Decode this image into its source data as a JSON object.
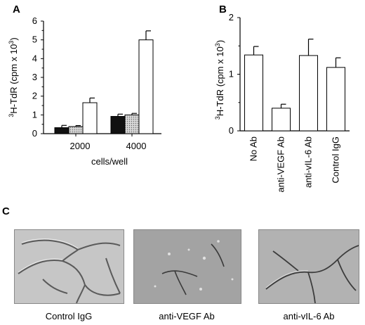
{
  "panel_labels": [
    "A",
    "B",
    "C"
  ],
  "chart_data": [
    {
      "type": "bar",
      "panel": "A",
      "categories": [
        "2000",
        "4000"
      ],
      "xlabel": "cells/well",
      "ylabel": "3H-TdR (cpm x 10³)",
      "ylabel_sup": "3",
      "ylabel_main": "H-TdR (cpm x 10",
      "ylabel_exp": "3",
      "ylabel_close": ")",
      "ylim": [
        0,
        6
      ],
      "yticks": [
        "0",
        "1",
        "2",
        "3",
        "4",
        "5",
        "6"
      ],
      "series": [
        {
          "values": [
            0.32,
            0.92
          ],
          "errors": [
            0.12,
            0.12
          ],
          "fill": "#111111"
        },
        {
          "values": [
            0.38,
            1.0
          ],
          "errors": [
            0.05,
            0.08
          ],
          "fill": "#cccccc"
        },
        {
          "values": [
            1.65,
            5.0
          ],
          "errors": [
            0.25,
            0.48
          ],
          "fill": "#ffffff"
        }
      ]
    },
    {
      "type": "bar",
      "panel": "B",
      "categories": [
        "No Ab",
        "anti-VEGF Ab",
        "anti-vIL-6 Ab",
        "Control IgG"
      ],
      "ylabel": "3H-TdR (cpm x 10³)",
      "ylabel_sup": "3",
      "ylabel_main": "H-TdR (cpm x 10",
      "ylabel_exp": "3",
      "ylabel_close": ")",
      "ylim": [
        0,
        2
      ],
      "yticks": [
        "0",
        "1",
        "2"
      ],
      "values": [
        1.34,
        0.4,
        1.33,
        1.12
      ],
      "errors": [
        0.15,
        0.07,
        0.29,
        0.17
      ]
    }
  ],
  "panel_c": {
    "captions": [
      "Control IgG",
      "anti-VEGF Ab",
      "anti-vIL-6 Ab"
    ]
  }
}
